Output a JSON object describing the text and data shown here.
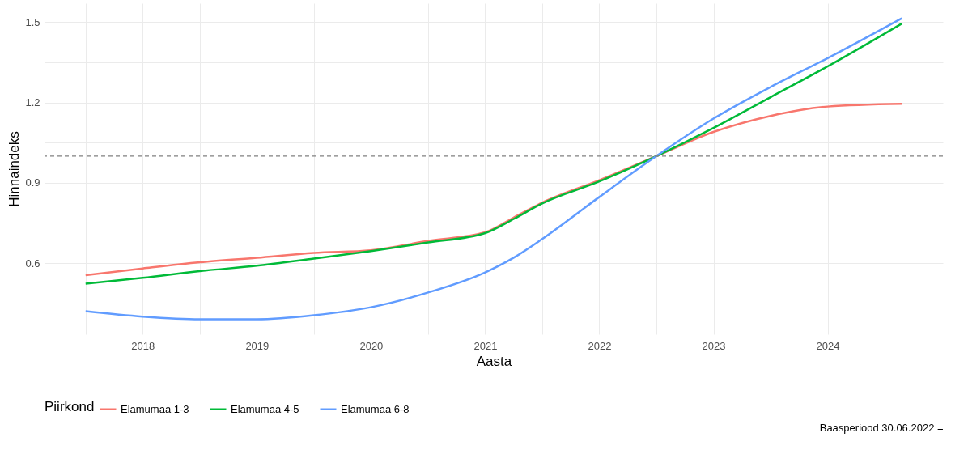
{
  "chart_data": {
    "type": "line",
    "xlabel": "Aasta",
    "ylabel": "Hinnaindeks",
    "legend_title": "Piirkond",
    "legend": "bottom",
    "grid": true,
    "line_style": "solid",
    "marker": "none",
    "xlim": [
      2017.14,
      2025.01
    ],
    "ylim": [
      0.334,
      1.571
    ],
    "xticks": [
      {
        "value": 2017.5,
        "label": null
      },
      2018,
      {
        "value": 2018.5,
        "label": null
      },
      2019,
      {
        "value": 2019.5,
        "label": null
      },
      2020,
      {
        "value": 2020.5,
        "label": null
      },
      2021,
      {
        "value": 2021.5,
        "label": null
      },
      2022,
      {
        "value": 2022.5,
        "label": null
      },
      2023,
      {
        "value": 2023.5,
        "label": null
      },
      2024,
      {
        "value": 2024.5,
        "label": null
      }
    ],
    "yticks": [
      {
        "value": 0.45,
        "label": null
      },
      0.6,
      {
        "value": 0.75,
        "label": null
      },
      0.9,
      {
        "value": 1.05,
        "label": null
      },
      1.2,
      {
        "value": 1.35,
        "label": null
      },
      1.5
    ],
    "x": [
      2017.5,
      2018,
      2018.5,
      2019,
      2019.5,
      2020,
      2020.5,
      2021,
      2021.25,
      2021.5,
      2022,
      2022.5,
      2023,
      2023.5,
      2024,
      2024.65
    ],
    "series": [
      {
        "name": "Elamumaa 1-3",
        "color": "#f8766d",
        "values": [
          0.555,
          0.58,
          0.603,
          0.62,
          0.638,
          0.648,
          0.683,
          0.715,
          0.77,
          0.826,
          0.91,
          1.0,
          1.09,
          1.15,
          1.185,
          1.195
        ]
      },
      {
        "name": "Elamumaa 4-5",
        "color": "#00ba38",
        "values": [
          0.523,
          0.545,
          0.57,
          0.59,
          0.617,
          0.645,
          0.677,
          0.712,
          0.765,
          0.823,
          0.905,
          1.0,
          1.105,
          1.22,
          1.335,
          1.495
        ]
      },
      {
        "name": "Elamumaa 6-8",
        "color": "#619cff",
        "values": [
          0.42,
          0.4,
          0.39,
          0.39,
          0.405,
          0.435,
          0.49,
          0.565,
          0.62,
          0.69,
          0.847,
          1.0,
          1.14,
          1.258,
          1.366,
          1.515
        ]
      }
    ],
    "ref_lines": [
      {
        "axis": "y",
        "value": 1.0,
        "color": "#808080",
        "line_style": "dashed"
      }
    ],
    "annotations": [
      "Baasperiood 30.06.2022 ="
    ]
  }
}
